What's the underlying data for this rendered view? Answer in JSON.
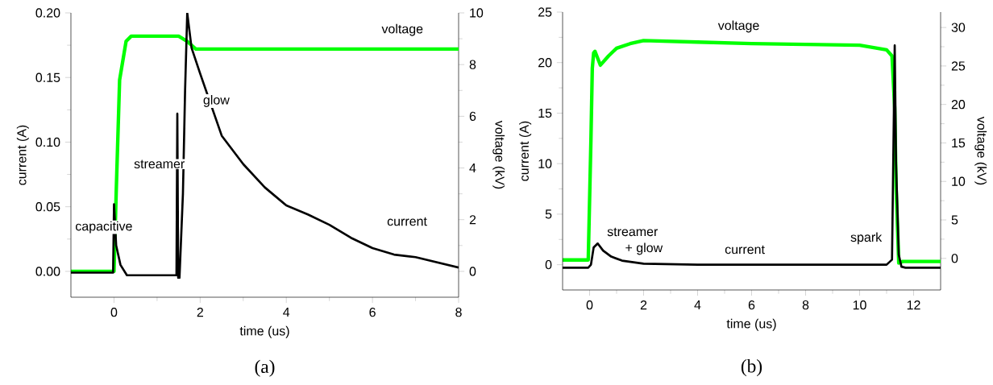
{
  "chart_data": [
    {
      "type": "line",
      "xlabel": "time (us)",
      "ylabel": "current (A)",
      "y2label": "voltage (kV)",
      "xlim": [
        -1,
        8
      ],
      "xticks": [
        0,
        2,
        4,
        6,
        8
      ],
      "ylim": [
        -0.02,
        0.2
      ],
      "yticks": [
        {
          "value": 0,
          "label": "0.00"
        },
        {
          "value": 0.05,
          "label": "0.05"
        },
        {
          "value": 0.1,
          "label": "0.10"
        },
        {
          "value": 0.15,
          "label": "0.15"
        },
        {
          "value": 0.2,
          "label": "0.20"
        }
      ],
      "y2lim": [
        -1,
        10
      ],
      "y2ticks": [
        0,
        2,
        4,
        6,
        8,
        10
      ],
      "series": [
        {
          "color": "#000000",
          "axis": "y",
          "x": [
            -1,
            -0.02,
            0,
            0.05,
            0.15,
            0.3,
            1.0,
            1.45,
            1.47,
            1.49,
            1.52,
            1.6,
            1.65,
            1.7,
            1.8,
            2.0,
            2.5,
            3.0,
            3.5,
            4.0,
            4.5,
            5.0,
            5.5,
            6.0,
            6.5,
            7.0,
            7.5,
            8.0
          ],
          "values": [
            -0.001,
            -0.001,
            0.052,
            0.02,
            0.005,
            -0.003,
            -0.003,
            -0.003,
            0.122,
            -0.005,
            -0.005,
            0.06,
            0.14,
            0.2,
            0.173,
            0.153,
            0.105,
            0.083,
            0.065,
            0.051,
            0.044,
            0.036,
            0.026,
            0.018,
            0.013,
            0.011,
            0.007,
            0.003
          ]
        },
        {
          "color": "#00ff00",
          "axis": "y2",
          "x": [
            -1,
            0,
            0.05,
            0.13,
            0.28,
            0.4,
            1.5,
            1.7,
            1.9,
            8.0
          ],
          "values": [
            0,
            0,
            3,
            7.4,
            8.9,
            9.1,
            9.1,
            8.9,
            8.6,
            8.6
          ]
        }
      ],
      "annotations": [
        "capacitive",
        "streamer",
        "glow",
        "voltage",
        "current",
        "(a)"
      ]
    },
    {
      "type": "line",
      "xlabel": "time (us)",
      "ylabel": "current (A)",
      "y2label": "voltage (kV)",
      "xlim": [
        -1,
        13
      ],
      "xticks": [
        0,
        2,
        4,
        6,
        8,
        10,
        12
      ],
      "ylim": [
        -2.5,
        25
      ],
      "yticks": [
        0,
        5,
        10,
        15,
        20,
        25
      ],
      "y2lim": [
        -4.1,
        32
      ],
      "y2ticks": [
        0,
        5,
        10,
        15,
        20,
        25,
        30
      ],
      "series": [
        {
          "color": "#000000",
          "axis": "y",
          "x": [
            -1,
            -0.05,
            0.05,
            0.15,
            0.3,
            0.5,
            0.8,
            1.2,
            2,
            4,
            11,
            11.2,
            11.3,
            11.35,
            11.45,
            11.55,
            11.7,
            13
          ],
          "values": [
            -0.3,
            -0.3,
            0,
            1.7,
            2.1,
            1.4,
            0.8,
            0.4,
            0.1,
            0,
            0,
            0.5,
            21.7,
            10,
            1,
            -0.2,
            -0.3,
            -0.3
          ]
        },
        {
          "color": "#00ff00",
          "axis": "y2",
          "x": [
            -1,
            -0.05,
            0.05,
            0.1,
            0.15,
            0.2,
            0.4,
            0.7,
            1.0,
            1.5,
            2,
            4,
            6,
            8,
            10,
            11,
            11.2,
            11.3,
            11.35,
            11.45,
            11.6,
            13
          ],
          "values": [
            -0.2,
            -0.2,
            15.5,
            24.7,
            26.7,
            26.9,
            25.1,
            26.3,
            27.3,
            27.9,
            28.3,
            28.1,
            27.9,
            27.8,
            27.7,
            27.1,
            26.3,
            19.5,
            9.4,
            -0.6,
            -0.4,
            -0.4
          ]
        }
      ],
      "annotations": [
        "voltage",
        "streamer",
        "+ glow",
        "current",
        "spark",
        "(b)"
      ]
    }
  ]
}
